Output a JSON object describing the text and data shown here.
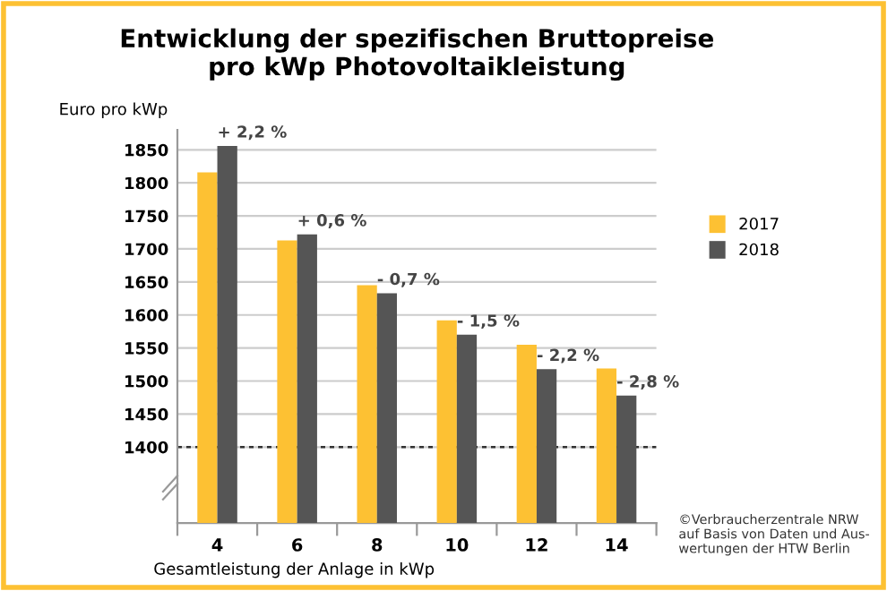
{
  "chart_data": {
    "type": "bar",
    "title": "Entwicklung der spezifischen Bruttopreise\npro kWp Photovoltaikleistung",
    "xlabel": "Gesamtleistung der Anlage in kWp",
    "ylabel": "Euro pro kWp",
    "categories": [
      "4",
      "6",
      "8",
      "10",
      "12",
      "14"
    ],
    "series": [
      {
        "name": "2017",
        "color": "#fdc133",
        "values": [
          1816,
          1713,
          1645,
          1592,
          1555,
          1519
        ]
      },
      {
        "name": "2018",
        "color": "#555555",
        "values": [
          1856,
          1722,
          1633,
          1570,
          1518,
          1478
        ]
      }
    ],
    "ylim": [
      1285,
      1880
    ],
    "yticks": [
      1400,
      1450,
      1500,
      1550,
      1600,
      1650,
      1700,
      1750,
      1800,
      1850
    ],
    "grid": "y",
    "legend": "right",
    "ref_lines": [
      {
        "axis": "y",
        "value": 1400,
        "label": null,
        "color": "#333333",
        "line_style": "dashed"
      }
    ],
    "annotations": [
      {
        "text": "+ 2,2 %",
        "x": "4",
        "y": 1856
      },
      {
        "text": "+ 0,6 %",
        "x": "6",
        "y": 1722
      },
      {
        "text": "- 0,7 %",
        "x": "8",
        "y": 1633
      },
      {
        "text": "- 1,5 %",
        "x": "10",
        "y": 1570
      },
      {
        "text": "- 2,2 %",
        "x": "12",
        "y": 1518
      },
      {
        "text": "- 2,8 %",
        "x": "14",
        "y": 1478
      },
      "©Verbraucherzentrale NRW\nauf Basis von Daten und Aus-\nwertungen der HTW Berlin"
    ]
  }
}
